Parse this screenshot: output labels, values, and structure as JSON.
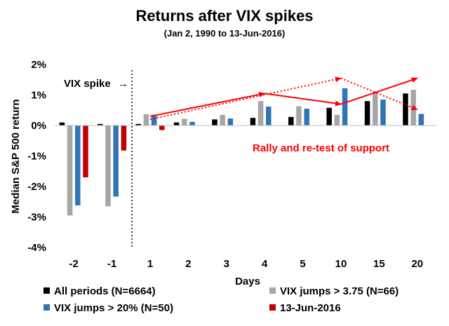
{
  "chart_data": {
    "type": "bar",
    "title": "Returns after VIX spikes",
    "subtitle": "(Jan 2, 1990 to 13-Jun-2016)",
    "xlabel": "Days",
    "ylabel": "Median S&P 500 return",
    "ylim": [
      -4,
      2
    ],
    "yticks": [
      "2%",
      "1%",
      "0%",
      "-1%",
      "-2%",
      "-3%",
      "-4%"
    ],
    "ytick_values": [
      2,
      1,
      0,
      -1,
      -2,
      -3,
      -4
    ],
    "categories": [
      "-2",
      "-1",
      "1",
      "2",
      "3",
      "4",
      "5",
      "10",
      "15",
      "20"
    ],
    "series": [
      {
        "name": "All periods (N=6664)",
        "color": "#000000",
        "values": [
          0.1,
          0.05,
          0.05,
          0.1,
          0.2,
          0.25,
          0.28,
          0.58,
          0.8,
          1.05
        ]
      },
      {
        "name": "VIX jumps > 3.75 (N=66)",
        "color": "#a6a6a6",
        "values": [
          -2.95,
          -2.65,
          0.37,
          0.22,
          0.35,
          0.8,
          0.63,
          0.35,
          1.12,
          1.17
        ]
      },
      {
        "name": "VIX jumps > 20% (N=50)",
        "color": "#2e75b6",
        "values": [
          -2.62,
          -2.33,
          0.35,
          0.12,
          0.23,
          0.62,
          0.55,
          1.22,
          0.85,
          0.38
        ]
      },
      {
        "name": "13-Jun-2016",
        "color": "#c00000",
        "values": [
          -1.7,
          -0.82,
          -0.15,
          null,
          null,
          null,
          null,
          null,
          null,
          null
        ]
      }
    ],
    "legend": "bottom",
    "annotations": {
      "vix_spike": "VIX spike",
      "vix_spike_arrow": "→",
      "rally": "Rally and re-test of support"
    },
    "arrows": {
      "color": "#ff0000",
      "solid": [
        {
          "from": [
            "1",
            0.3
          ],
          "to": [
            "4",
            1.05
          ]
        },
        {
          "from": [
            "4",
            1.05
          ],
          "to": [
            "10",
            0.7
          ]
        },
        {
          "from": [
            "10",
            0.7
          ],
          "to": [
            "20",
            1.55
          ]
        }
      ],
      "dotted": [
        {
          "from": [
            "1",
            0.2
          ],
          "to": [
            "10",
            1.55
          ]
        },
        {
          "from": [
            "10",
            1.55
          ],
          "to": [
            "20",
            0.52
          ]
        }
      ]
    }
  }
}
